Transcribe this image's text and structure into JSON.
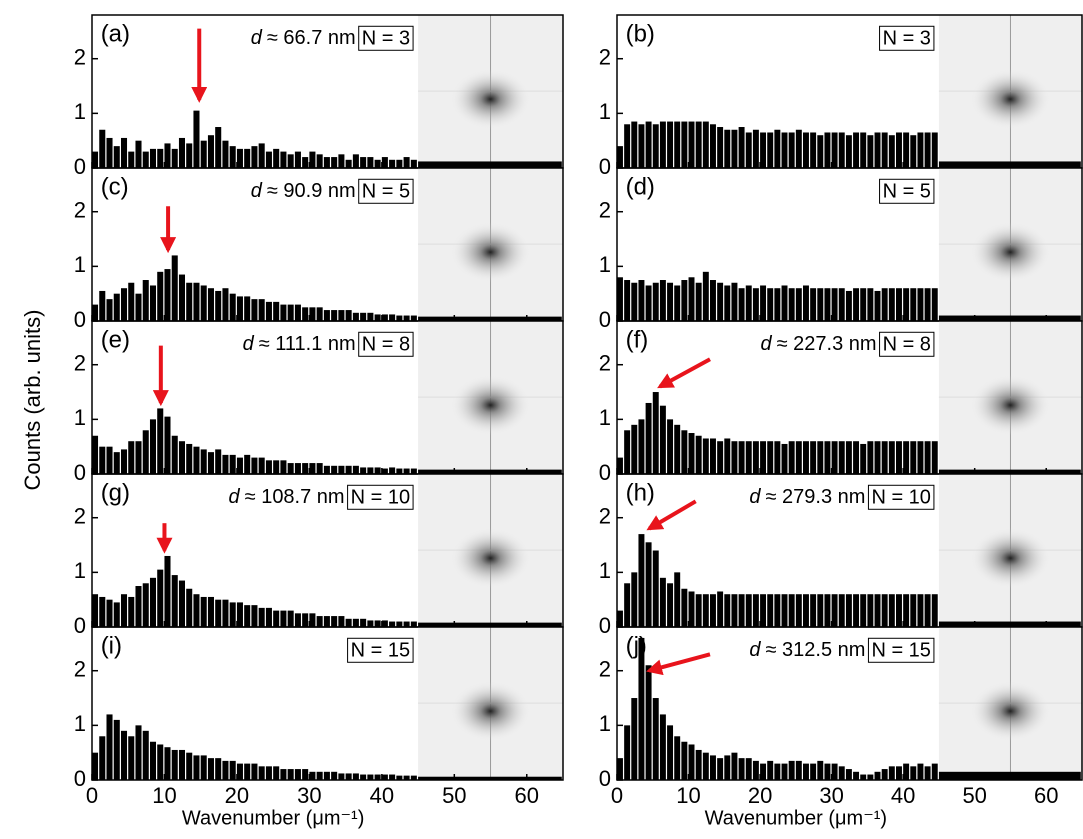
{
  "y_label": "Counts (arb. units)",
  "chart_data": [
    {
      "type": "histogram",
      "panel": "(a)",
      "annotation_symbol": "d",
      "annotation": "≈ 66.7 nm",
      "n_label": "N = 3",
      "color": "#000000",
      "bins": [
        0,
        1,
        2,
        3,
        4,
        5,
        6,
        7,
        8,
        9,
        10,
        11,
        12,
        13,
        14,
        15,
        16,
        17,
        18,
        19,
        20,
        21,
        22,
        23,
        24,
        25,
        26,
        27,
        28,
        29,
        30,
        31,
        32,
        33,
        34,
        35,
        36,
        37,
        38,
        39,
        40,
        41,
        42,
        43,
        44,
        45,
        65
      ],
      "values": [
        0.3,
        0.7,
        0.55,
        0.4,
        0.55,
        0.3,
        0.5,
        0.3,
        0.35,
        0.35,
        0.45,
        0.35,
        0.55,
        0.45,
        1.05,
        0.5,
        0.6,
        0.75,
        0.5,
        0.4,
        0.35,
        0.35,
        0.4,
        0.45,
        0.3,
        0.35,
        0.3,
        0.25,
        0.3,
        0.2,
        0.3,
        0.25,
        0.2,
        0.2,
        0.25,
        0.15,
        0.25,
        0.2,
        0.2,
        0.15,
        0.2,
        0.15,
        0.15,
        0.2,
        0.15,
        0.12
      ],
      "xlim": [
        0,
        65
      ],
      "xticks": [
        0,
        10,
        20,
        30,
        40,
        50,
        60
      ],
      "ylim": [
        0,
        2.8
      ],
      "yticks": [
        0,
        1,
        2
      ]
    },
    {
      "type": "histogram",
      "panel": "(b)",
      "n_label": "N = 3",
      "color": "#000000",
      "bins": [
        0,
        1,
        2,
        3,
        4,
        5,
        6,
        7,
        8,
        9,
        10,
        11,
        12,
        13,
        14,
        15,
        16,
        17,
        18,
        19,
        20,
        21,
        22,
        23,
        24,
        25,
        26,
        27,
        28,
        29,
        30,
        31,
        32,
        33,
        34,
        35,
        36,
        37,
        38,
        39,
        40,
        41,
        42,
        43,
        44,
        45,
        65
      ],
      "values": [
        0.4,
        0.8,
        0.85,
        0.8,
        0.85,
        0.8,
        0.85,
        0.85,
        0.85,
        0.85,
        0.85,
        0.85,
        0.85,
        0.8,
        0.75,
        0.7,
        0.7,
        0.75,
        0.65,
        0.7,
        0.65,
        0.65,
        0.7,
        0.65,
        0.65,
        0.7,
        0.65,
        0.65,
        0.6,
        0.65,
        0.65,
        0.65,
        0.6,
        0.65,
        0.65,
        0.6,
        0.65,
        0.65,
        0.6,
        0.65,
        0.65,
        0.6,
        0.65,
        0.65,
        0.65,
        0.12
      ],
      "xlim": [
        0,
        65
      ],
      "xticks": [
        0,
        10,
        20,
        30,
        40,
        50,
        60
      ],
      "ylim": [
        0,
        2.8
      ],
      "yticks": [
        0,
        1,
        2
      ]
    },
    {
      "type": "histogram",
      "panel": "(c)",
      "annotation_symbol": "d",
      "annotation": "≈ 90.9 nm",
      "n_label": "N = 5",
      "color": "#000000",
      "bins": [
        0,
        1,
        2,
        3,
        4,
        5,
        6,
        7,
        8,
        9,
        10,
        11,
        12,
        13,
        14,
        15,
        16,
        17,
        18,
        19,
        20,
        21,
        22,
        23,
        24,
        25,
        26,
        27,
        28,
        29,
        30,
        31,
        32,
        33,
        34,
        35,
        36,
        37,
        38,
        39,
        40,
        41,
        42,
        43,
        44,
        45,
        65
      ],
      "values": [
        0.3,
        0.55,
        0.4,
        0.5,
        0.6,
        0.7,
        0.5,
        0.75,
        0.65,
        0.9,
        0.95,
        1.2,
        0.85,
        0.7,
        0.7,
        0.65,
        0.6,
        0.55,
        0.6,
        0.5,
        0.45,
        0.45,
        0.4,
        0.4,
        0.35,
        0.35,
        0.3,
        0.3,
        0.3,
        0.25,
        0.25,
        0.25,
        0.2,
        0.2,
        0.2,
        0.2,
        0.15,
        0.15,
        0.15,
        0.12,
        0.12,
        0.12,
        0.1,
        0.1,
        0.1,
        0.08
      ],
      "xlim": [
        0,
        65
      ],
      "xticks": [
        0,
        10,
        20,
        30,
        40,
        50,
        60
      ],
      "ylim": [
        0,
        2.8
      ],
      "yticks": [
        0,
        1,
        2
      ]
    },
    {
      "type": "histogram",
      "panel": "(d)",
      "n_label": "N = 5",
      "color": "#000000",
      "bins": [
        0,
        1,
        2,
        3,
        4,
        5,
        6,
        7,
        8,
        9,
        10,
        11,
        12,
        13,
        14,
        15,
        16,
        17,
        18,
        19,
        20,
        21,
        22,
        23,
        24,
        25,
        26,
        27,
        28,
        29,
        30,
        31,
        32,
        33,
        34,
        35,
        36,
        37,
        38,
        39,
        40,
        41,
        42,
        43,
        44,
        45,
        65
      ],
      "values": [
        0.8,
        0.75,
        0.7,
        0.75,
        0.65,
        0.7,
        0.75,
        0.7,
        0.65,
        0.75,
        0.8,
        0.7,
        0.9,
        0.75,
        0.7,
        0.65,
        0.7,
        0.6,
        0.65,
        0.6,
        0.65,
        0.6,
        0.6,
        0.65,
        0.6,
        0.6,
        0.65,
        0.6,
        0.6,
        0.6,
        0.6,
        0.6,
        0.55,
        0.6,
        0.6,
        0.6,
        0.55,
        0.6,
        0.6,
        0.6,
        0.6,
        0.6,
        0.6,
        0.6,
        0.6,
        0.1
      ],
      "xlim": [
        0,
        65
      ],
      "xticks": [
        0,
        10,
        20,
        30,
        40,
        50,
        60
      ],
      "ylim": [
        0,
        2.8
      ],
      "yticks": [
        0,
        1,
        2
      ]
    },
    {
      "type": "histogram",
      "panel": "(e)",
      "annotation_symbol": "d",
      "annotation": "≈ 111.1 nm",
      "n_label": "N = 8",
      "color": "#000000",
      "bins": [
        0,
        1,
        2,
        3,
        4,
        5,
        6,
        7,
        8,
        9,
        10,
        11,
        12,
        13,
        14,
        15,
        16,
        17,
        18,
        19,
        20,
        21,
        22,
        23,
        24,
        25,
        26,
        27,
        28,
        29,
        30,
        31,
        32,
        33,
        34,
        35,
        36,
        37,
        38,
        39,
        40,
        41,
        42,
        43,
        44,
        45,
        65
      ],
      "values": [
        0.7,
        0.5,
        0.5,
        0.4,
        0.45,
        0.6,
        0.6,
        0.8,
        1.0,
        1.2,
        1.05,
        0.7,
        0.6,
        0.55,
        0.5,
        0.45,
        0.4,
        0.45,
        0.35,
        0.35,
        0.3,
        0.35,
        0.3,
        0.3,
        0.25,
        0.25,
        0.25,
        0.2,
        0.2,
        0.2,
        0.2,
        0.2,
        0.15,
        0.15,
        0.15,
        0.15,
        0.15,
        0.12,
        0.12,
        0.12,
        0.1,
        0.12,
        0.1,
        0.1,
        0.1,
        0.08
      ],
      "xlim": [
        0,
        65
      ],
      "xticks": [
        0,
        10,
        20,
        30,
        40,
        50,
        60
      ],
      "ylim": [
        0,
        2.8
      ],
      "yticks": [
        0,
        1,
        2
      ]
    },
    {
      "type": "histogram",
      "panel": "(f)",
      "annotation_symbol": "d",
      "annotation": "≈ 227.3 nm",
      "n_label": "N = 8",
      "color": "#000000",
      "bins": [
        0,
        1,
        2,
        3,
        4,
        5,
        6,
        7,
        8,
        9,
        10,
        11,
        12,
        13,
        14,
        15,
        16,
        17,
        18,
        19,
        20,
        21,
        22,
        23,
        24,
        25,
        26,
        27,
        28,
        29,
        30,
        31,
        32,
        33,
        34,
        35,
        36,
        37,
        38,
        39,
        40,
        41,
        42,
        43,
        44,
        45,
        65
      ],
      "values": [
        0.3,
        0.8,
        0.9,
        1.0,
        1.3,
        1.5,
        1.25,
        1.0,
        0.9,
        0.8,
        0.75,
        0.7,
        0.65,
        0.65,
        0.6,
        0.65,
        0.6,
        0.6,
        0.6,
        0.6,
        0.6,
        0.6,
        0.6,
        0.55,
        0.6,
        0.6,
        0.6,
        0.6,
        0.6,
        0.6,
        0.6,
        0.6,
        0.6,
        0.6,
        0.55,
        0.6,
        0.6,
        0.6,
        0.6,
        0.6,
        0.6,
        0.6,
        0.6,
        0.6,
        0.6,
        0.08
      ],
      "xlim": [
        0,
        65
      ],
      "xticks": [
        0,
        10,
        20,
        30,
        40,
        50,
        60
      ],
      "ylim": [
        0,
        2.8
      ],
      "yticks": [
        0,
        1,
        2
      ]
    },
    {
      "type": "histogram",
      "panel": "(g)",
      "annotation_symbol": "d",
      "annotation": "≈ 108.7 nm",
      "n_label": "N = 10",
      "color": "#000000",
      "bins": [
        0,
        1,
        2,
        3,
        4,
        5,
        6,
        7,
        8,
        9,
        10,
        11,
        12,
        13,
        14,
        15,
        16,
        17,
        18,
        19,
        20,
        21,
        22,
        23,
        24,
        25,
        26,
        27,
        28,
        29,
        30,
        31,
        32,
        33,
        34,
        35,
        36,
        37,
        38,
        39,
        40,
        41,
        42,
        43,
        44,
        45,
        65
      ],
      "values": [
        0.6,
        0.55,
        0.5,
        0.45,
        0.6,
        0.55,
        0.75,
        0.8,
        0.9,
        1.05,
        1.3,
        0.95,
        0.85,
        0.7,
        0.6,
        0.55,
        0.55,
        0.5,
        0.5,
        0.45,
        0.45,
        0.4,
        0.4,
        0.35,
        0.35,
        0.3,
        0.3,
        0.3,
        0.25,
        0.25,
        0.25,
        0.2,
        0.2,
        0.2,
        0.2,
        0.15,
        0.15,
        0.15,
        0.12,
        0.12,
        0.12,
        0.1,
        0.1,
        0.1,
        0.1,
        0.08
      ],
      "xlim": [
        0,
        65
      ],
      "xticks": [
        0,
        10,
        20,
        30,
        40,
        50,
        60
      ],
      "ylim": [
        0,
        2.8
      ],
      "yticks": [
        0,
        1,
        2
      ]
    },
    {
      "type": "histogram",
      "panel": "(h)",
      "annotation_symbol": "d",
      "annotation": "≈ 279.3 nm",
      "n_label": "N = 10",
      "color": "#000000",
      "bins": [
        0,
        1,
        2,
        3,
        4,
        5,
        6,
        7,
        8,
        9,
        10,
        11,
        12,
        13,
        14,
        15,
        16,
        17,
        18,
        19,
        20,
        21,
        22,
        23,
        24,
        25,
        26,
        27,
        28,
        29,
        30,
        31,
        32,
        33,
        34,
        35,
        36,
        37,
        38,
        39,
        40,
        41,
        42,
        43,
        44,
        45,
        65
      ],
      "values": [
        0.3,
        0.8,
        1.0,
        1.7,
        1.55,
        1.4,
        0.9,
        0.8,
        1.0,
        0.7,
        0.65,
        0.6,
        0.6,
        0.6,
        0.65,
        0.6,
        0.6,
        0.6,
        0.6,
        0.6,
        0.6,
        0.6,
        0.6,
        0.6,
        0.6,
        0.6,
        0.6,
        0.6,
        0.6,
        0.6,
        0.6,
        0.6,
        0.6,
        0.6,
        0.6,
        0.6,
        0.6,
        0.6,
        0.6,
        0.6,
        0.6,
        0.6,
        0.6,
        0.6,
        0.6,
        0.1
      ],
      "xlim": [
        0,
        65
      ],
      "xticks": [
        0,
        10,
        20,
        30,
        40,
        50,
        60
      ],
      "ylim": [
        0,
        2.8
      ],
      "yticks": [
        0,
        1,
        2
      ]
    },
    {
      "type": "histogram",
      "panel": "(i)",
      "n_label": "N = 15",
      "color": "#000000",
      "x_label": "Wavenumber (μm⁻¹)",
      "bins": [
        0,
        1,
        2,
        3,
        4,
        5,
        6,
        7,
        8,
        9,
        10,
        11,
        12,
        13,
        14,
        15,
        16,
        17,
        18,
        19,
        20,
        21,
        22,
        23,
        24,
        25,
        26,
        27,
        28,
        29,
        30,
        31,
        32,
        33,
        34,
        35,
        36,
        37,
        38,
        39,
        40,
        41,
        42,
        43,
        44,
        45,
        65
      ],
      "values": [
        0.5,
        0.8,
        1.2,
        1.1,
        0.9,
        0.8,
        1.0,
        0.9,
        0.7,
        0.65,
        0.6,
        0.55,
        0.55,
        0.5,
        0.45,
        0.45,
        0.4,
        0.4,
        0.35,
        0.35,
        0.3,
        0.3,
        0.3,
        0.25,
        0.25,
        0.25,
        0.2,
        0.2,
        0.2,
        0.2,
        0.15,
        0.15,
        0.15,
        0.15,
        0.12,
        0.12,
        0.12,
        0.1,
        0.1,
        0.1,
        0.1,
        0.1,
        0.08,
        0.08,
        0.08,
        0.06
      ],
      "xlim": [
        0,
        65
      ],
      "xticks": [
        0,
        10,
        20,
        30,
        40,
        50,
        60
      ],
      "ylim": [
        0,
        2.8
      ],
      "yticks": [
        0,
        1,
        2
      ]
    },
    {
      "type": "histogram",
      "panel": "(j)",
      "annotation_symbol": "d",
      "annotation": "≈ 312.5 nm",
      "n_label": "N = 15",
      "color": "#000000",
      "x_label": "Wavenumber (μm⁻¹)",
      "bins": [
        0,
        1,
        2,
        3,
        4,
        5,
        6,
        7,
        8,
        9,
        10,
        11,
        12,
        13,
        14,
        15,
        16,
        17,
        18,
        19,
        20,
        21,
        22,
        23,
        24,
        25,
        26,
        27,
        28,
        29,
        30,
        31,
        32,
        33,
        34,
        35,
        36,
        37,
        38,
        39,
        40,
        41,
        42,
        43,
        44,
        45,
        65
      ],
      "values": [
        0.4,
        1.0,
        1.5,
        2.6,
        2.1,
        1.5,
        1.2,
        1.0,
        0.8,
        0.7,
        0.65,
        0.55,
        0.5,
        0.45,
        0.4,
        0.45,
        0.5,
        0.4,
        0.4,
        0.35,
        0.3,
        0.35,
        0.3,
        0.3,
        0.35,
        0.35,
        0.3,
        0.3,
        0.35,
        0.3,
        0.3,
        0.25,
        0.2,
        0.15,
        0.1,
        0.1,
        0.15,
        0.2,
        0.25,
        0.25,
        0.3,
        0.25,
        0.3,
        0.25,
        0.3,
        0.15
      ],
      "xlim": [
        0,
        65
      ],
      "xticks": [
        0,
        10,
        20,
        30,
        40,
        50,
        60
      ],
      "ylim": [
        0,
        2.8
      ],
      "yticks": [
        0,
        1,
        2
      ]
    }
  ]
}
